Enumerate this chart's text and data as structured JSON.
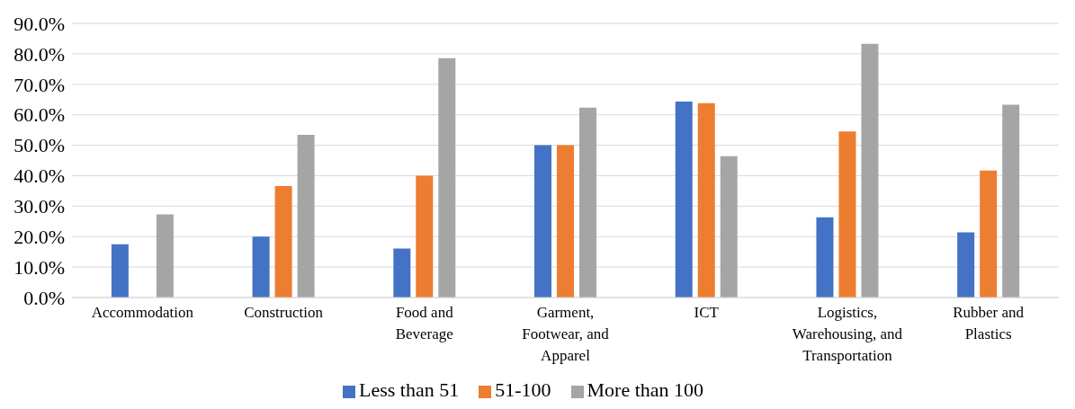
{
  "chart_data": {
    "type": "bar",
    "categories": [
      "Accommodation",
      "Construction",
      "Food and Beverage",
      "Garment, Footwear, and Apparel",
      "ICT",
      "Logistics, Warehousing, and Transportation",
      "Rubber and Plastics"
    ],
    "series": [
      {
        "name": "Less than 51",
        "color": "#4472c4",
        "values": [
          17.5,
          20.0,
          16.1,
          50.0,
          64.3,
          26.3,
          21.4
        ]
      },
      {
        "name": "51-100",
        "color": "#ed7d31",
        "values": [
          0,
          36.6,
          40.0,
          50.0,
          63.8,
          54.5,
          41.7
        ]
      },
      {
        "name": "More than 100",
        "color": "#a5a5a5",
        "values": [
          27.3,
          53.4,
          78.6,
          62.3,
          46.4,
          83.3,
          63.3
        ]
      }
    ],
    "ylim": [
      0,
      90
    ],
    "yticks": [
      {
        "value": 0,
        "label": "0.0%"
      },
      {
        "value": 10,
        "label": "10.0%"
      },
      {
        "value": 20,
        "label": "20.0%"
      },
      {
        "value": 30,
        "label": "30.0%"
      },
      {
        "value": 40,
        "label": "40.0%"
      },
      {
        "value": 50,
        "label": "50.0%"
      },
      {
        "value": 60,
        "label": "60.0%"
      },
      {
        "value": 70,
        "label": "70.0%"
      },
      {
        "value": 80,
        "label": "80.0%"
      },
      {
        "value": 90,
        "label": "90.0%"
      }
    ],
    "grid": "y",
    "legend": "bottom"
  }
}
